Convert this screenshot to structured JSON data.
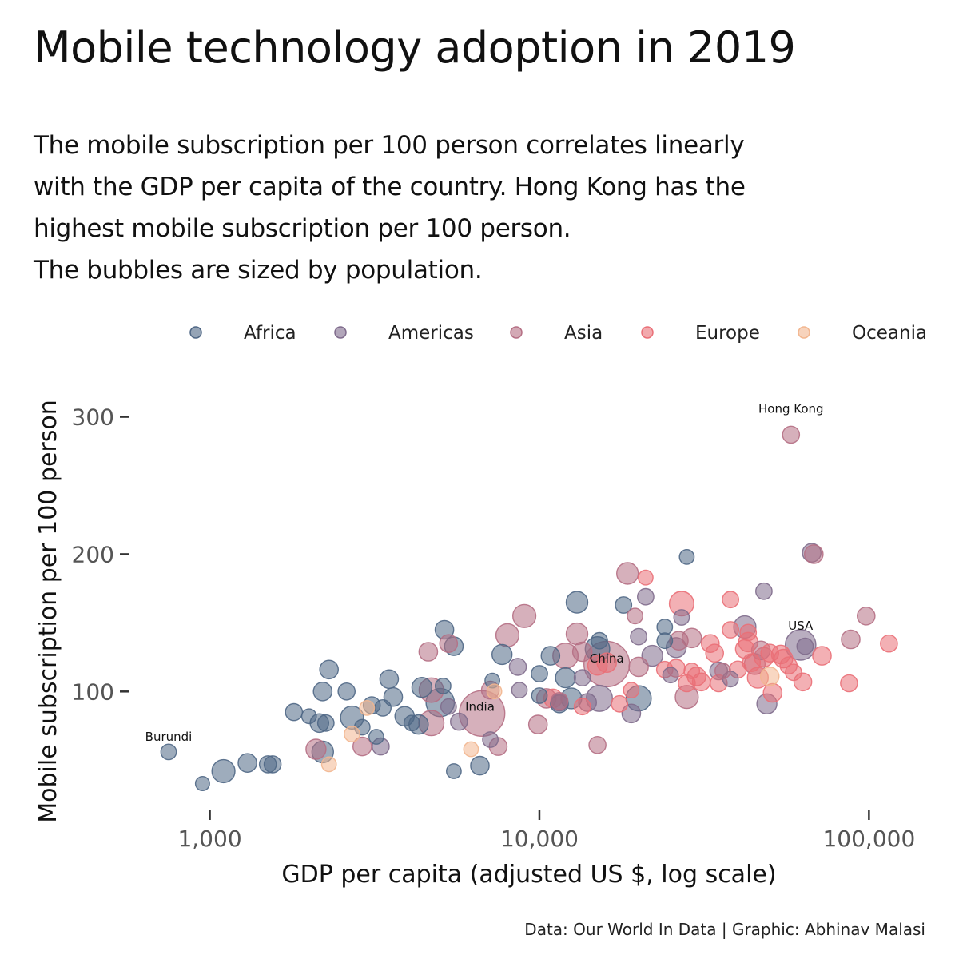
{
  "title": "Mobile technology adoption in 2019",
  "subtitle_lines": [
    "The mobile subscription per 100 person correlates linearly",
    "with the GDP per capita of the country. Hong Kong has the",
    "highest mobile subscription per 100 person.",
    "The bubbles are sized by population."
  ],
  "caption": "Data: Our World In Data | Graphic: Abhinav Malasi",
  "colors": {
    "Africa": "#4f6785",
    "Americas": "#7f6b8c",
    "Asia": "#b56f84",
    "Europe": "#ea6f77",
    "Oceania": "#f2b68f"
  },
  "chart_data": {
    "type": "scatter",
    "xlabel": "GDP per capita (adjusted US $, log scale)",
    "ylabel": "Mobile subscription per 100 person",
    "x_scale": "log",
    "xlim": [
      580,
      150000
    ],
    "ylim": [
      10,
      330
    ],
    "x_ticks": [
      1000,
      10000,
      100000
    ],
    "x_tick_labels": [
      "1,000",
      "10,000",
      "100,000"
    ],
    "y_ticks": [
      100,
      200,
      300
    ],
    "y_tick_labels": [
      "100",
      "200",
      "300"
    ],
    "grid": false,
    "legend": {
      "position": "top",
      "entries": [
        "Africa",
        "Americas",
        "Asia",
        "Europe",
        "Oceania"
      ]
    },
    "size_encodes": "population",
    "annotations": [
      {
        "label": "Hong Kong",
        "x": 58000,
        "y": 303
      },
      {
        "label": "Burundi",
        "x": 750,
        "y": 64
      },
      {
        "label": "India",
        "x": 6600,
        "y": 86
      },
      {
        "label": "China",
        "x": 16000,
        "y": 121
      },
      {
        "label": "USA",
        "x": 62000,
        "y": 145
      }
    ],
    "series": [
      {
        "name": "Africa",
        "points": [
          [
            750,
            56,
            1
          ],
          [
            950,
            33,
            0.8
          ],
          [
            1100,
            42,
            2
          ],
          [
            1300,
            48,
            1.4
          ],
          [
            1500,
            47,
            1.2
          ],
          [
            1550,
            47,
            1.2
          ],
          [
            1800,
            85,
            1.2
          ],
          [
            2000,
            82,
            0.9
          ],
          [
            2150,
            77,
            1.4
          ],
          [
            2200,
            100,
            1.4
          ],
          [
            2200,
            56,
            1.8
          ],
          [
            2250,
            77,
            1.1
          ],
          [
            2300,
            116,
            1.4
          ],
          [
            2600,
            100,
            1.2
          ],
          [
            2700,
            81,
            2
          ],
          [
            2900,
            74,
            1
          ],
          [
            3100,
            90,
            1.2
          ],
          [
            3200,
            67,
            0.9
          ],
          [
            3350,
            88,
            1.1
          ],
          [
            3500,
            109,
            1.4
          ],
          [
            3600,
            96,
            1.4
          ],
          [
            3900,
            82,
            1.5
          ],
          [
            4100,
            77,
            1
          ],
          [
            4300,
            76,
            1.5
          ],
          [
            4400,
            103,
            1.6
          ],
          [
            5000,
            92,
            2.7
          ],
          [
            5100,
            104,
            1
          ],
          [
            5150,
            145,
            1.4
          ],
          [
            5500,
            133,
            1.4
          ],
          [
            5500,
            42,
            0.9
          ],
          [
            6600,
            46,
            1.4
          ],
          [
            7200,
            108,
            0.9
          ],
          [
            7700,
            127,
            1.6
          ],
          [
            10000,
            113,
            1.1
          ],
          [
            10000,
            97,
            1
          ],
          [
            10800,
            126,
            1.4
          ],
          [
            11500,
            91,
            1.3
          ],
          [
            12000,
            110,
            1.6
          ],
          [
            12500,
            95,
            1.7
          ],
          [
            13000,
            165,
            1.8
          ],
          [
            15000,
            131,
            2.2
          ],
          [
            15200,
            137,
            1.1
          ],
          [
            18000,
            163,
            1.1
          ],
          [
            20000,
            95,
            2.3
          ],
          [
            24000,
            147,
            1
          ],
          [
            24000,
            137,
            1
          ],
          [
            28000,
            198,
            0.9
          ]
        ]
      },
      {
        "name": "Americas",
        "points": [
          [
            3300,
            60,
            1.2
          ],
          [
            5300,
            89,
            1
          ],
          [
            5700,
            78,
            1.2
          ],
          [
            7100,
            65,
            1
          ],
          [
            8600,
            118,
            1.2
          ],
          [
            8700,
            101,
            1
          ],
          [
            11500,
            92,
            1.2
          ],
          [
            13500,
            110,
            1.1
          ],
          [
            14000,
            92,
            1.3
          ],
          [
            15200,
            95,
            2.4
          ],
          [
            19000,
            84,
            1.4
          ],
          [
            20000,
            140,
            1.1
          ],
          [
            21000,
            169,
            1.1
          ],
          [
            22000,
            126,
            1.7
          ],
          [
            25000,
            112,
            1
          ],
          [
            26000,
            132,
            1.6
          ],
          [
            27000,
            154,
            1
          ],
          [
            35000,
            115,
            1.3
          ],
          [
            38000,
            109,
            1
          ],
          [
            42000,
            147,
            1.9
          ],
          [
            48000,
            173,
            1.1
          ],
          [
            49000,
            91,
            1.6
          ],
          [
            62000,
            134,
            3
          ],
          [
            64000,
            133,
            1.1
          ],
          [
            67000,
            201,
            1.4
          ]
        ]
      },
      {
        "name": "Asia",
        "points": [
          [
            2100,
            58,
            1.6
          ],
          [
            2900,
            60,
            1.4
          ],
          [
            4600,
            129,
            1.4
          ],
          [
            4700,
            101,
            2.2
          ],
          [
            4700,
            77,
            2.3
          ],
          [
            5300,
            135,
            1.3
          ],
          [
            6700,
            84,
            5
          ],
          [
            7100,
            101,
            1.3
          ],
          [
            7500,
            60,
            1.3
          ],
          [
            8000,
            141,
            2
          ],
          [
            9000,
            155,
            2
          ],
          [
            9900,
            76,
            1.4
          ],
          [
            10500,
            95,
            1.5
          ],
          [
            11500,
            93,
            1.2
          ],
          [
            12000,
            126,
            2.3
          ],
          [
            13000,
            142,
            1.8
          ],
          [
            13500,
            129,
            1.5
          ],
          [
            15000,
            61,
            1.2
          ],
          [
            16000,
            120,
            5
          ],
          [
            18500,
            186,
            1.8
          ],
          [
            19500,
            155,
            1
          ],
          [
            20000,
            118,
            1.5
          ],
          [
            26500,
            137,
            1.4
          ],
          [
            28000,
            96,
            2
          ],
          [
            29000,
            139,
            1.5
          ],
          [
            36000,
            115,
            1
          ],
          [
            45000,
            120,
            1.7
          ],
          [
            47000,
            130,
            1.4
          ],
          [
            58000,
            287,
            1.2
          ],
          [
            68000,
            200,
            1.4
          ],
          [
            88000,
            138,
            1.4
          ],
          [
            98000,
            155,
            1.3
          ]
        ]
      },
      {
        "name": "Europe",
        "points": [
          [
            11000,
            95,
            1.4
          ],
          [
            13500,
            89,
            1.1
          ],
          [
            15000,
            119,
            1.5
          ],
          [
            16000,
            121,
            1.5
          ],
          [
            17500,
            91,
            1.1
          ],
          [
            19000,
            101,
            1
          ],
          [
            21000,
            183,
            0.9
          ],
          [
            24000,
            116,
            1.1
          ],
          [
            26000,
            117,
            1.3
          ],
          [
            27000,
            164,
            2.2
          ],
          [
            28000,
            106,
            1.2
          ],
          [
            29000,
            115,
            1
          ],
          [
            30000,
            111,
            1.4
          ],
          [
            31000,
            107,
            1.3
          ],
          [
            33000,
            135,
            1.3
          ],
          [
            34000,
            128,
            1.3
          ],
          [
            35000,
            106,
            1.2
          ],
          [
            38000,
            167,
            1.1
          ],
          [
            38000,
            145,
            1.1
          ],
          [
            40000,
            116,
            1.2
          ],
          [
            42000,
            131,
            1.4
          ],
          [
            43000,
            143,
            1.1
          ],
          [
            43000,
            136,
            1.5
          ],
          [
            44000,
            121,
            1.3
          ],
          [
            46000,
            110,
            1.7
          ],
          [
            48000,
            125,
            1.5
          ],
          [
            50000,
            128,
            1.3
          ],
          [
            51000,
            99,
            1.4
          ],
          [
            54000,
            127,
            1.4
          ],
          [
            55000,
            124,
            1.4
          ],
          [
            57000,
            119,
            1.2
          ],
          [
            59000,
            114,
            1.1
          ],
          [
            63000,
            107,
            1.3
          ],
          [
            72000,
            126,
            1.4
          ],
          [
            87000,
            106,
            1.2
          ],
          [
            115000,
            135,
            1.2
          ]
        ]
      },
      {
        "name": "Oceania",
        "points": [
          [
            2300,
            47,
            0.9
          ],
          [
            2700,
            69,
            1
          ],
          [
            3000,
            88,
            0.9
          ],
          [
            6200,
            58,
            0.9
          ],
          [
            7300,
            100,
            0.9
          ],
          [
            50000,
            111,
            1.4
          ]
        ]
      }
    ]
  }
}
